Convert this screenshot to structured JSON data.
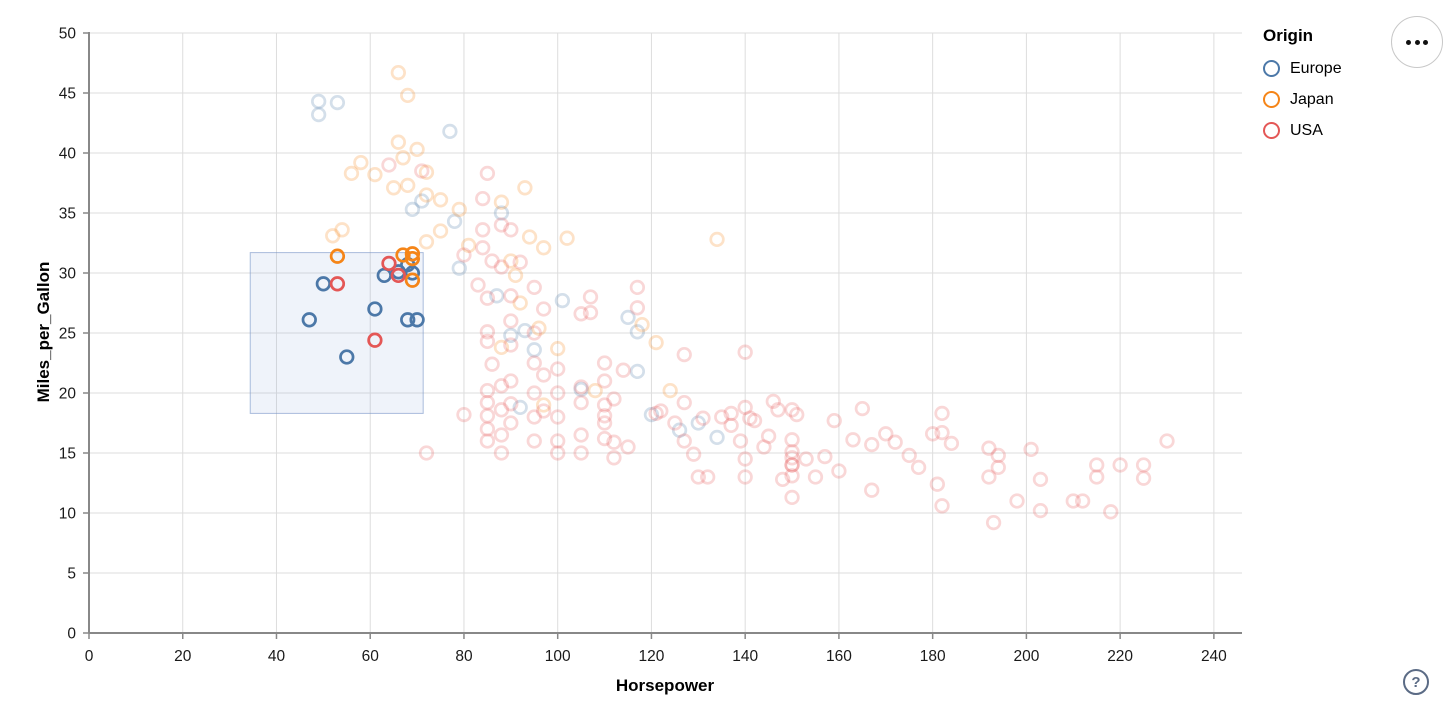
{
  "legend": {
    "title": "Origin",
    "items": [
      {
        "label": "Europe",
        "color": "#4c78a8"
      },
      {
        "label": "Japan",
        "color": "#f58518"
      },
      {
        "label": "USA",
        "color": "#e45756"
      }
    ]
  },
  "controls": {
    "menu_icon": "ellipsis-menu-icon",
    "help_label": "?"
  },
  "colors": {
    "grid": "#dddddd",
    "axis": "#888888",
    "tick_label": "#1a1a1a",
    "brush_fill": "rgba(125,160,210,0.12)",
    "brush_stroke": "rgba(116,146,199,0.6)"
  },
  "chart_data": {
    "type": "scatter",
    "xlabel": "Horsepower",
    "ylabel": "Miles_per_Gallon",
    "xlim": [
      0,
      246
    ],
    "ylim": [
      0,
      50
    ],
    "x_ticks": [
      0,
      20,
      40,
      60,
      80,
      100,
      120,
      140,
      160,
      180,
      200,
      220,
      240
    ],
    "y_ticks": [
      0,
      5,
      10,
      15,
      20,
      25,
      30,
      35,
      40,
      45,
      50
    ],
    "grid": true,
    "legend_position": "top-right",
    "point_style": {
      "shape": "open-circle",
      "radius": 6.3,
      "stroke_width": 2.7,
      "unselected_opacity": 0.24
    },
    "brush_selection": {
      "horsepower": [
        34.4,
        71.3
      ],
      "miles_per_gallon": [
        18.3,
        31.7
      ]
    },
    "series": [
      {
        "name": "Europe",
        "color": "#4c78a8",
        "selected": [
          [
            50,
            29.1
          ],
          [
            47,
            26.1
          ],
          [
            61,
            27.0
          ],
          [
            55,
            23.0
          ],
          [
            68,
            26.1
          ],
          [
            70,
            26.1
          ],
          [
            63,
            29.8
          ],
          [
            68,
            30.7
          ],
          [
            69,
            30.0
          ],
          [
            66,
            30.1
          ]
        ],
        "unselected": [
          [
            49,
            44.3
          ],
          [
            49,
            43.2
          ],
          [
            53,
            44.2
          ],
          [
            77,
            41.8
          ],
          [
            71,
            36.0
          ],
          [
            69,
            35.3
          ],
          [
            78,
            34.3
          ],
          [
            79,
            30.4
          ],
          [
            88,
            35.0
          ],
          [
            115,
            26.3
          ],
          [
            117,
            25.1
          ],
          [
            117,
            21.8
          ],
          [
            120,
            18.2
          ],
          [
            130,
            17.5
          ],
          [
            126,
            16.9
          ],
          [
            134,
            16.3
          ],
          [
            95,
            23.6
          ],
          [
            93,
            25.2
          ],
          [
            101,
            27.7
          ],
          [
            105,
            20.3
          ],
          [
            92,
            18.8
          ],
          [
            87,
            28.1
          ],
          [
            90,
            24.8
          ]
        ]
      },
      {
        "name": "Japan",
        "color": "#f58518",
        "selected": [
          [
            53,
            31.4
          ],
          [
            67,
            31.5
          ],
          [
            69,
            31.6
          ],
          [
            69,
            31.2
          ],
          [
            69,
            29.4
          ]
        ],
        "unselected": [
          [
            66,
            46.7
          ],
          [
            68,
            44.8
          ],
          [
            58,
            39.2
          ],
          [
            61,
            38.2
          ],
          [
            66,
            40.9
          ],
          [
            56,
            38.3
          ],
          [
            67,
            39.6
          ],
          [
            70,
            40.3
          ],
          [
            72,
            38.4
          ],
          [
            65,
            37.1
          ],
          [
            68,
            37.3
          ],
          [
            72,
            36.5
          ],
          [
            75,
            36.1
          ],
          [
            79,
            35.3
          ],
          [
            93,
            37.1
          ],
          [
            88,
            35.9
          ],
          [
            102,
            32.9
          ],
          [
            97,
            32.1
          ],
          [
            91,
            29.8
          ],
          [
            134,
            32.8
          ],
          [
            52,
            33.1
          ],
          [
            54,
            33.6
          ],
          [
            72,
            32.6
          ],
          [
            94,
            33.0
          ],
          [
            90,
            31.0
          ],
          [
            75,
            33.5
          ],
          [
            81,
            32.3
          ],
          [
            92,
            27.5
          ],
          [
            96,
            25.4
          ],
          [
            100,
            23.7
          ],
          [
            118,
            25.7
          ],
          [
            121,
            24.2
          ],
          [
            124,
            20.2
          ],
          [
            97,
            19.0
          ],
          [
            108,
            20.2
          ],
          [
            88,
            23.8
          ]
        ]
      },
      {
        "name": "USA",
        "color": "#e45756",
        "selected": [
          [
            53,
            29.1
          ],
          [
            61,
            24.4
          ],
          [
            64,
            30.8
          ],
          [
            66,
            29.8
          ]
        ],
        "unselected": [
          [
            64,
            39.0
          ],
          [
            85,
            38.3
          ],
          [
            84,
            36.2
          ],
          [
            88,
            34.0
          ],
          [
            90,
            33.6
          ],
          [
            84,
            33.6
          ],
          [
            84,
            32.1
          ],
          [
            71,
            38.5
          ],
          [
            80,
            31.5
          ],
          [
            86,
            31.0
          ],
          [
            92,
            30.9
          ],
          [
            88,
            30.5
          ],
          [
            107,
            28.0
          ],
          [
            107,
            26.7
          ],
          [
            117,
            28.8
          ],
          [
            117,
            27.1
          ],
          [
            114,
            21.9
          ],
          [
            127,
            23.2
          ],
          [
            140,
            23.4
          ],
          [
            83,
            29.0
          ],
          [
            85,
            27.9
          ],
          [
            85,
            25.1
          ],
          [
            85,
            24.3
          ],
          [
            86,
            22.4
          ],
          [
            85,
            20.2
          ],
          [
            85,
            19.2
          ],
          [
            85,
            18.1
          ],
          [
            85,
            17.0
          ],
          [
            85,
            16.0
          ],
          [
            80,
            18.2
          ],
          [
            88,
            20.6
          ],
          [
            88,
            18.6
          ],
          [
            88,
            16.5
          ],
          [
            88,
            15.0
          ],
          [
            90,
            28.1
          ],
          [
            90,
            26.0
          ],
          [
            90,
            24.0
          ],
          [
            90,
            21.0
          ],
          [
            90,
            19.1
          ],
          [
            90,
            17.5
          ],
          [
            95,
            28.8
          ],
          [
            95,
            25.0
          ],
          [
            95,
            22.5
          ],
          [
            95,
            20.0
          ],
          [
            95,
            18.0
          ],
          [
            95,
            16.0
          ],
          [
            97,
            27.0
          ],
          [
            97,
            21.5
          ],
          [
            97,
            18.5
          ],
          [
            100,
            22.0
          ],
          [
            100,
            20.0
          ],
          [
            100,
            18.0
          ],
          [
            100,
            16.0
          ],
          [
            100,
            15.0
          ],
          [
            105,
            26.6
          ],
          [
            105,
            20.5
          ],
          [
            105,
            19.2
          ],
          [
            105,
            16.5
          ],
          [
            105,
            15.0
          ],
          [
            110,
            22.5
          ],
          [
            110,
            21.0
          ],
          [
            110,
            19.0
          ],
          [
            110,
            18.1
          ],
          [
            110,
            17.5
          ],
          [
            110,
            16.2
          ],
          [
            112,
            19.5
          ],
          [
            112,
            15.9
          ],
          [
            112,
            14.6
          ],
          [
            115,
            15.5
          ],
          [
            72,
            15.0
          ],
          [
            121,
            18.3
          ],
          [
            122,
            18.5
          ],
          [
            125,
            17.5
          ],
          [
            127,
            19.2
          ],
          [
            127,
            16.0
          ],
          [
            129,
            14.9
          ],
          [
            130,
            13.0
          ],
          [
            132,
            13.0
          ],
          [
            131,
            17.9
          ],
          [
            135,
            18.0
          ],
          [
            137,
            18.3
          ],
          [
            137,
            17.3
          ],
          [
            139,
            16.0
          ],
          [
            140,
            18.8
          ],
          [
            141,
            17.9
          ],
          [
            140,
            14.5
          ],
          [
            140,
            13.0
          ],
          [
            142,
            17.7
          ],
          [
            144,
            15.5
          ],
          [
            145,
            16.4
          ],
          [
            146,
            19.3
          ],
          [
            147,
            18.6
          ],
          [
            148,
            12.8
          ],
          [
            150,
            18.6
          ],
          [
            151,
            18.2
          ],
          [
            150,
            16.1
          ],
          [
            150,
            15.1
          ],
          [
            150,
            14.6
          ],
          [
            150,
            14.0
          ],
          [
            150,
            14.0
          ],
          [
            150,
            13.1
          ],
          [
            150,
            11.3
          ],
          [
            153,
            14.5
          ],
          [
            155,
            13.0
          ],
          [
            157,
            14.7
          ],
          [
            159,
            17.7
          ],
          [
            160,
            13.5
          ],
          [
            163,
            16.1
          ],
          [
            165,
            18.7
          ],
          [
            167,
            15.7
          ],
          [
            167,
            11.9
          ],
          [
            170,
            16.6
          ],
          [
            172,
            15.9
          ],
          [
            175,
            14.8
          ],
          [
            177,
            13.8
          ],
          [
            180,
            16.6
          ],
          [
            182,
            18.3
          ],
          [
            182,
            16.7
          ],
          [
            184,
            15.8
          ],
          [
            181,
            12.4
          ],
          [
            182,
            10.6
          ],
          [
            192,
            15.4
          ],
          [
            192,
            13.0
          ],
          [
            194,
            14.8
          ],
          [
            194,
            13.8
          ],
          [
            193,
            9.2
          ],
          [
            198,
            11.0
          ],
          [
            201,
            15.3
          ],
          [
            203,
            12.8
          ],
          [
            203,
            10.2
          ],
          [
            210,
            11.0
          ],
          [
            212,
            11.0
          ],
          [
            215,
            14.0
          ],
          [
            215,
            13.0
          ],
          [
            218,
            10.1
          ],
          [
            220,
            14.0
          ],
          [
            225,
            14.0
          ],
          [
            225,
            12.9
          ],
          [
            230,
            16.0
          ]
        ]
      }
    ]
  }
}
